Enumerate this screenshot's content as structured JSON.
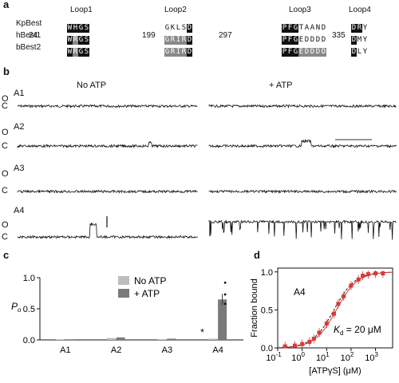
{
  "panel_a": {
    "label": "a",
    "loops": [
      "Loop1",
      "Loop2",
      "Loop3",
      "Loop4"
    ],
    "rows": [
      {
        "name": "KpBest",
        "nums": [
          "",
          "",
          "",
          ""
        ],
        "segs": [
          [
            [
              "W",
              "k"
            ],
            [
              "H",
              "k"
            ],
            [
              "G",
              "k"
            ],
            [
              "S",
              "k"
            ]
          ],
          [
            [
              "G",
              "w"
            ],
            [
              "K",
              "w"
            ],
            [
              "L",
              "w"
            ],
            [
              "S",
              "w"
            ],
            [
              "D",
              "k"
            ]
          ],
          [
            [
              "P",
              "k"
            ],
            [
              "F",
              "k"
            ],
            [
              "G",
              "k"
            ],
            [
              "T",
              "w"
            ],
            [
              "A",
              "w"
            ],
            [
              "A",
              "w"
            ],
            [
              "N",
              "w"
            ],
            [
              "D",
              "w"
            ]
          ],
          [
            [
              "D",
              "k"
            ],
            [
              "R",
              "k"
            ],
            [
              "Y",
              "w"
            ]
          ]
        ]
      },
      {
        "name": "hBest1",
        "nums": [
          "24",
          "199",
          "297",
          "335"
        ],
        "segs": [
          [
            [
              "W",
              "k"
            ],
            [
              "R",
              "g"
            ],
            [
              "G",
              "k"
            ],
            [
              "S",
              "k"
            ]
          ],
          [
            [
              "G",
              "g"
            ],
            [
              "R",
              "g"
            ],
            [
              "I",
              "g"
            ],
            [
              "R",
              "g"
            ],
            [
              "D",
              "k"
            ]
          ],
          [
            [
              "P",
              "k"
            ],
            [
              "F",
              "k"
            ],
            [
              "G",
              "k"
            ],
            [
              "E",
              "w"
            ],
            [
              "D",
              "w"
            ],
            [
              "D",
              "w"
            ],
            [
              "D",
              "w"
            ],
            [
              "D",
              "w"
            ]
          ],
          [
            [
              "D",
              "k"
            ],
            [
              "M",
              "w"
            ],
            [
              "Y",
              "w"
            ]
          ]
        ]
      },
      {
        "name": "bBest2",
        "nums": [
          "",
          "",
          "",
          ""
        ],
        "segs": [
          [
            [
              "W",
              "k"
            ],
            [
              "R",
              "g"
            ],
            [
              "G",
              "k"
            ],
            [
              "S",
              "k"
            ]
          ],
          [
            [
              "G",
              "g"
            ],
            [
              "R",
              "g"
            ],
            [
              "I",
              "g"
            ],
            [
              "R",
              "g"
            ],
            [
              "D",
              "k"
            ]
          ],
          [
            [
              "P",
              "k"
            ],
            [
              "F",
              "k"
            ],
            [
              "G",
              "k"
            ],
            [
              "E",
              "g"
            ],
            [
              "D",
              "g"
            ],
            [
              "D",
              "g"
            ],
            [
              "D",
              "g"
            ],
            [
              "D",
              "g"
            ]
          ],
          [
            [
              "D",
              "k"
            ],
            [
              "L",
              "w"
            ],
            [
              "Y",
              "w"
            ]
          ]
        ]
      }
    ]
  },
  "panel_b": {
    "label": "b",
    "no_atp": "No ATP",
    "plus_atp": "+ ATP",
    "open": "O",
    "closed": "C",
    "traces": [
      "A1",
      "A2",
      "A3",
      "A4"
    ]
  },
  "panel_c": {
    "label": "c",
    "ylabel_main": "P",
    "ylabel_sub": "o",
    "asterisk": "*",
    "chart_data": {
      "type": "bar",
      "categories": [
        "A1",
        "A2",
        "A3",
        "A4"
      ],
      "series": [
        {
          "name": "No ATP",
          "color": "#bdbdbd",
          "values": [
            0.01,
            0.03,
            0.01,
            0.02
          ]
        },
        {
          "name": "+ ATP",
          "color": "#7a7a7a",
          "values": [
            0.01,
            0.04,
            0.02,
            0.65
          ]
        }
      ],
      "ylim": [
        0,
        1.0
      ],
      "yticks": [
        "0.0",
        "0.5",
        "1.0"
      ],
      "legend": "top-right"
    }
  },
  "panel_d": {
    "label": "d",
    "ylabel": "Fraction bound",
    "xlabel": "[ATPγS] (μM)",
    "trace": "A4",
    "kd_label": "K",
    "kd_sub": "d",
    "kd_value": " = 20 μM",
    "chart_data": {
      "type": "scatter",
      "x": [
        0.2,
        0.5,
        1,
        2,
        3,
        5,
        10,
        20,
        30,
        50,
        100,
        200,
        300,
        500,
        1000,
        2000
      ],
      "y": [
        0.02,
        0.03,
        0.05,
        0.08,
        0.12,
        0.2,
        0.32,
        0.45,
        0.58,
        0.68,
        0.82,
        0.9,
        0.95,
        0.97,
        0.98,
        0.98
      ],
      "xscale": "log",
      "xlim": [
        0.1,
        5000
      ],
      "ylim": [
        0,
        1.05
      ],
      "xticks": [
        "10",
        "10",
        "10",
        "10",
        "10"
      ],
      "xtick_exps": [
        "-1",
        "0",
        "1",
        "2",
        "3"
      ],
      "yticks": [
        "0.0",
        "0.5",
        "1.0"
      ],
      "color": "#d63a3a",
      "fit": {
        "kd": 20
      }
    }
  }
}
